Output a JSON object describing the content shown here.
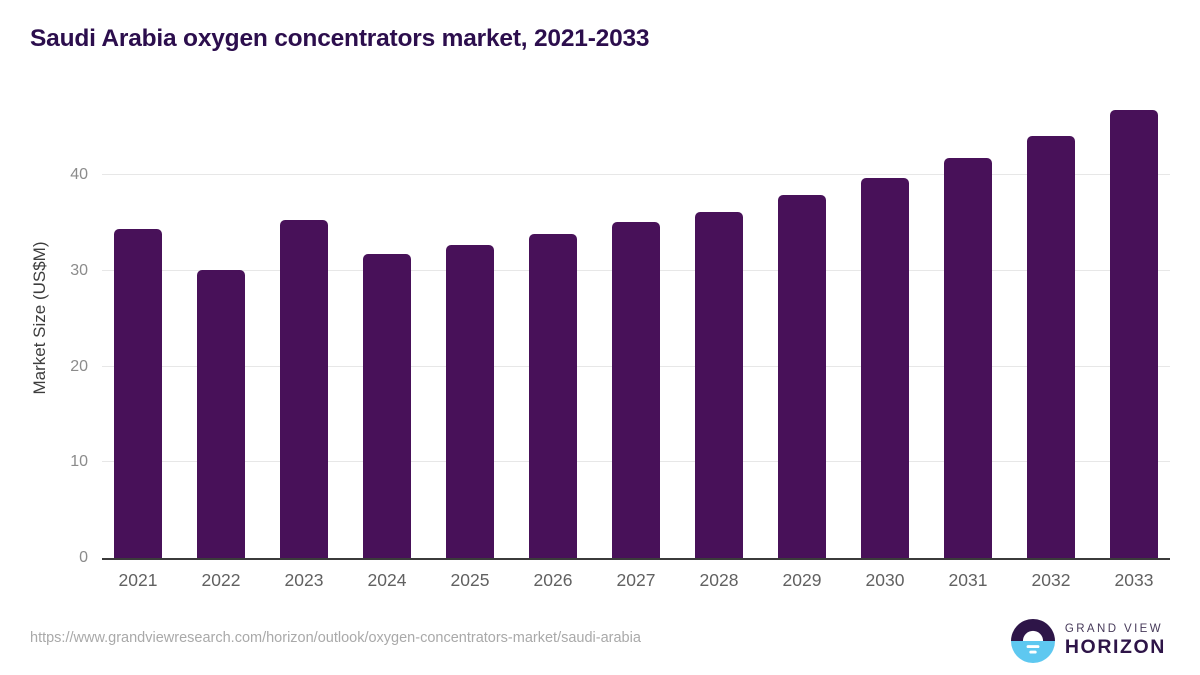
{
  "title": "Saudi Arabia oxygen concentrators market, 2021-2033",
  "chart_data": {
    "type": "bar",
    "categories": [
      "2021",
      "2022",
      "2023",
      "2024",
      "2025",
      "2026",
      "2027",
      "2028",
      "2029",
      "2030",
      "2031",
      "2032",
      "2033"
    ],
    "values": [
      34.4,
      30.1,
      35.3,
      31.8,
      32.7,
      33.9,
      35.1,
      36.2,
      37.9,
      39.7,
      41.8,
      44.1,
      46.8
    ],
    "title": "Saudi Arabia oxygen concentrators market, 2021-2033",
    "xlabel": "",
    "ylabel": "Market Size (US$M)",
    "ylim": [
      0,
      48.4
    ],
    "yticks": [
      0,
      10,
      20,
      30,
      40
    ],
    "grid": "horizontal",
    "legend": "none",
    "bar_color": "#481159"
  },
  "footer": {
    "source_url": "https://www.grandviewresearch.com/horizon/outlook/oxygen-concentrators-market/saudi-arabia",
    "logo": {
      "line1": "GRAND VIEW",
      "line2": "HORIZON"
    }
  },
  "colors": {
    "bar": "#481159",
    "title": "#2c0e4d",
    "axis_line": "#3b3b3b",
    "gridline": "#e7e7e7",
    "y_tick_label": "#8b8b8b",
    "x_tick_label": "#616161",
    "y_axis_title": "#3d3d3d",
    "source_url": "#a9a9a9",
    "logo_purple": "#2e1548",
    "logo_blue": "#5ec8f0"
  }
}
